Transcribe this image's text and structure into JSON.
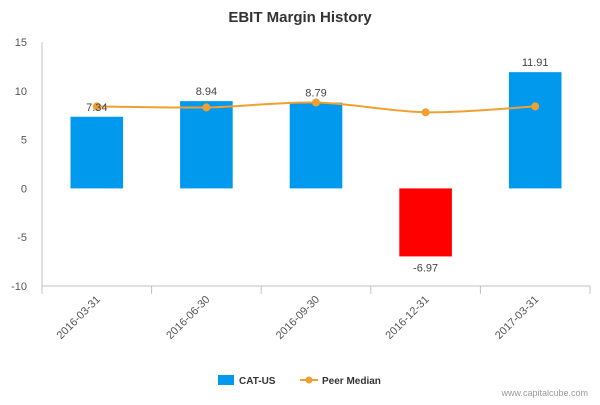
{
  "chart_data": {
    "type": "bar",
    "title": "EBIT Margin History",
    "categories": [
      "2016-03-31",
      "2016-06-30",
      "2016-09-30",
      "2016-12-31",
      "2017-03-31"
    ],
    "ylim": [
      -10,
      15
    ],
    "yticks": [
      "15",
      "10",
      "5",
      "0",
      "-5",
      "-10"
    ],
    "ytick_values": [
      15,
      10,
      5,
      0,
      -5,
      -10
    ],
    "grid": false,
    "legend_position": "bottom-center",
    "series": [
      {
        "name": "CAT-US",
        "kind": "bar",
        "values": [
          7.34,
          8.94,
          8.79,
          -6.97,
          11.91
        ],
        "labels": [
          "7.34",
          "8.94",
          "8.79",
          "-6.97",
          "11.91"
        ],
        "color_positive": "#0099ee",
        "color_negative": "#ff0000"
      },
      {
        "name": "Peer Median",
        "kind": "line",
        "values": [
          8.4,
          8.3,
          8.8,
          7.8,
          8.4
        ],
        "color": "#f0a030"
      }
    ]
  },
  "credit": "www.capitalcube.com"
}
